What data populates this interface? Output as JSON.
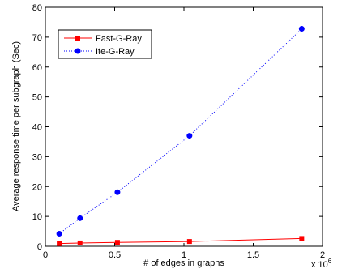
{
  "chart_data": {
    "type": "line",
    "title": "",
    "xlabel": "# of edges in graphs",
    "ylabel": "Average response time per subgraph (Sec)",
    "x_multiplier_label": "x 10",
    "x_multiplier_exp": "6",
    "xlim": [
      0,
      2
    ],
    "ylim": [
      0,
      80
    ],
    "xticks": [
      0,
      0.5,
      1,
      1.5,
      2
    ],
    "xtick_labels": [
      "0",
      "0.5",
      "1",
      "1.5",
      "2"
    ],
    "yticks": [
      0,
      10,
      20,
      30,
      40,
      50,
      60,
      70,
      80
    ],
    "ytick_labels": [
      "0",
      "10",
      "20",
      "30",
      "40",
      "50",
      "60",
      "70",
      "80"
    ],
    "grid": false,
    "legend_position": "top-left",
    "series": [
      {
        "name": "Fast-G-Ray",
        "color": "#ff0000",
        "line_style": "solid",
        "marker": "square",
        "x": [
          0.1,
          0.25,
          0.52,
          1.04,
          1.85
        ],
        "y": [
          0.9,
          1.1,
          1.3,
          1.6,
          2.6
        ]
      },
      {
        "name": "Ite-G-Ray",
        "color": "#0000ff",
        "line_style": "dotted",
        "marker": "circle",
        "x": [
          0.1,
          0.25,
          0.52,
          1.04,
          1.85
        ],
        "y": [
          4.2,
          9.4,
          18.1,
          37.0,
          72.8
        ]
      }
    ]
  }
}
